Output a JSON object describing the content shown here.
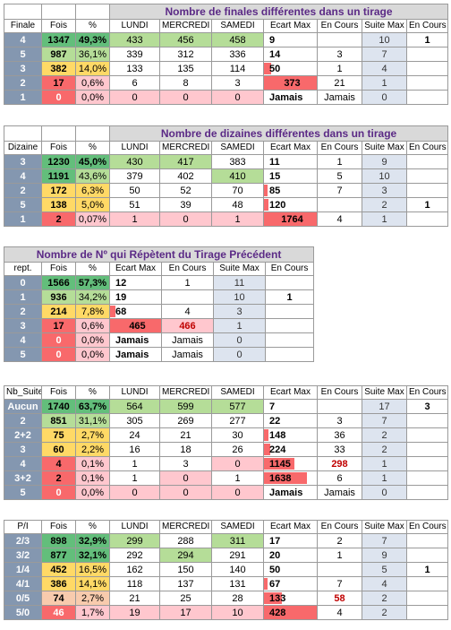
{
  "t1": {
    "title": "Nombre de finales différentes dans un tirage",
    "headers": [
      "Finale",
      "Fois",
      "%",
      "LUNDI",
      "MERCREDI",
      "SAMEDI",
      "Ecart Max",
      "En Cours",
      "Suite Max",
      "En Cours"
    ],
    "rows": [
      {
        "lbl": "4",
        "fois": "1347",
        "pct": "49,3%",
        "lun": "433",
        "mer": "456",
        "sam": "458",
        "em": "9",
        "ec": "",
        "sm": "10",
        "ec2": "1"
      },
      {
        "lbl": "5",
        "fois": "987",
        "pct": "36,1%",
        "lun": "339",
        "mer": "312",
        "sam": "336",
        "em": "14",
        "ec": "3",
        "sm": "7",
        "ec2": ""
      },
      {
        "lbl": "3",
        "fois": "382",
        "pct": "14,0%",
        "lun": "133",
        "mer": "135",
        "sam": "114",
        "em": "50",
        "ec": "1",
        "sm": "4",
        "ec2": ""
      },
      {
        "lbl": "2",
        "fois": "17",
        "pct": "0,6%",
        "lun": "6",
        "mer": "8",
        "sam": "3",
        "em": "373",
        "ec": "21",
        "sm": "1",
        "ec2": ""
      },
      {
        "lbl": "1",
        "fois": "0",
        "pct": "0,0%",
        "lun": "0",
        "mer": "0",
        "sam": "0",
        "em": "Jamais",
        "ec": "Jamais",
        "sm": "0",
        "ec2": ""
      }
    ]
  },
  "t2": {
    "title": "Nombre de dizaines différentes dans un tirage",
    "headers": [
      "Dizaine",
      "Fois",
      "%",
      "LUNDI",
      "MERCREDI",
      "SAMEDI",
      "Ecart Max",
      "En Cours",
      "Suite Max",
      "En Cours"
    ],
    "rows": [
      {
        "lbl": "3",
        "fois": "1230",
        "pct": "45,0%",
        "lun": "430",
        "mer": "417",
        "sam": "383",
        "em": "11",
        "ec": "1",
        "sm": "9",
        "ec2": ""
      },
      {
        "lbl": "4",
        "fois": "1191",
        "pct": "43,6%",
        "lun": "379",
        "mer": "402",
        "sam": "410",
        "em": "15",
        "ec": "5",
        "sm": "10",
        "ec2": ""
      },
      {
        "lbl": "2",
        "fois": "172",
        "pct": "6,3%",
        "lun": "50",
        "mer": "52",
        "sam": "70",
        "em": "85",
        "ec": "7",
        "sm": "3",
        "ec2": ""
      },
      {
        "lbl": "5",
        "fois": "138",
        "pct": "5,0%",
        "lun": "51",
        "mer": "39",
        "sam": "48",
        "em": "120",
        "ec": "",
        "sm": "2",
        "ec2": "1"
      },
      {
        "lbl": "1",
        "fois": "2",
        "pct": "0,07%",
        "lun": "1",
        "mer": "0",
        "sam": "1",
        "em": "1764",
        "ec": "4",
        "sm": "1",
        "ec2": ""
      }
    ]
  },
  "t3": {
    "title": "Nombre de Nº qui Répètent du Tirage Précédent",
    "headers": [
      "rept.",
      "Fois",
      "%",
      "Ecart Max",
      "En Cours",
      "Suite Max",
      "En Cours"
    ],
    "rows": [
      {
        "lbl": "0",
        "fois": "1566",
        "pct": "57,3%",
        "em": "12",
        "ec": "1",
        "sm": "11",
        "ec2": ""
      },
      {
        "lbl": "1",
        "fois": "936",
        "pct": "34,2%",
        "em": "19",
        "ec": "",
        "sm": "10",
        "ec2": "1"
      },
      {
        "lbl": "2",
        "fois": "214",
        "pct": "7,8%",
        "em": "68",
        "ec": "4",
        "sm": "3",
        "ec2": ""
      },
      {
        "lbl": "3",
        "fois": "17",
        "pct": "0,6%",
        "em": "465",
        "ec": "466",
        "sm": "1",
        "ec2": ""
      },
      {
        "lbl": "4",
        "fois": "0",
        "pct": "0,0%",
        "em": "Jamais",
        "ec": "Jamais",
        "sm": "0",
        "ec2": ""
      },
      {
        "lbl": "5",
        "fois": "0",
        "pct": "0,0%",
        "em": "Jamais",
        "ec": "Jamais",
        "sm": "0",
        "ec2": ""
      }
    ]
  },
  "t4": {
    "headers": [
      "Nb_Suite",
      "Fois",
      "%",
      "LUNDI",
      "MERCREDI",
      "SAMEDI",
      "Ecart Max",
      "En Cours",
      "Suite Max",
      "En Cours"
    ],
    "rows": [
      {
        "lbl": "Aucun",
        "fois": "1740",
        "pct": "63,7%",
        "lun": "564",
        "mer": "599",
        "sam": "577",
        "em": "7",
        "ec": "",
        "sm": "17",
        "ec2": "3"
      },
      {
        "lbl": "2",
        "fois": "851",
        "pct": "31,1%",
        "lun": "305",
        "mer": "269",
        "sam": "277",
        "em": "22",
        "ec": "3",
        "sm": "7",
        "ec2": ""
      },
      {
        "lbl": "2+2",
        "fois": "75",
        "pct": "2,7%",
        "lun": "24",
        "mer": "21",
        "sam": "30",
        "em": "148",
        "ec": "36",
        "sm": "2",
        "ec2": ""
      },
      {
        "lbl": "3",
        "fois": "60",
        "pct": "2,2%",
        "lun": "16",
        "mer": "18",
        "sam": "26",
        "em": "224",
        "ec": "33",
        "sm": "2",
        "ec2": ""
      },
      {
        "lbl": "4",
        "fois": "4",
        "pct": "0,1%",
        "lun": "1",
        "mer": "3",
        "sam": "0",
        "em": "1145",
        "ec": "298",
        "sm": "1",
        "ec2": ""
      },
      {
        "lbl": "3+2",
        "fois": "2",
        "pct": "0,1%",
        "lun": "1",
        "mer": "0",
        "sam": "1",
        "em": "1638",
        "ec": "6",
        "sm": "1",
        "ec2": ""
      },
      {
        "lbl": "5",
        "fois": "0",
        "pct": "0,0%",
        "lun": "0",
        "mer": "0",
        "sam": "0",
        "em": "Jamais",
        "ec": "Jamais",
        "sm": "0",
        "ec2": ""
      }
    ]
  },
  "t5": {
    "headers": [
      "P/I",
      "Fois",
      "%",
      "LUNDI",
      "MERCREDI",
      "SAMEDI",
      "Ecart Max",
      "En Cours",
      "Suite Max",
      "En Cours"
    ],
    "rows": [
      {
        "lbl": "2/3",
        "fois": "898",
        "pct": "32,9%",
        "lun": "299",
        "mer": "288",
        "sam": "311",
        "em": "17",
        "ec": "2",
        "sm": "7",
        "ec2": ""
      },
      {
        "lbl": "3/2",
        "fois": "877",
        "pct": "32,1%",
        "lun": "292",
        "mer": "294",
        "sam": "291",
        "em": "20",
        "ec": "1",
        "sm": "9",
        "ec2": ""
      },
      {
        "lbl": "1/4",
        "fois": "452",
        "pct": "16,5%",
        "lun": "162",
        "mer": "150",
        "sam": "140",
        "em": "50",
        "ec": "",
        "sm": "5",
        "ec2": "1"
      },
      {
        "lbl": "4/1",
        "fois": "386",
        "pct": "14,1%",
        "lun": "118",
        "mer": "137",
        "sam": "131",
        "em": "67",
        "ec": "7",
        "sm": "4",
        "ec2": ""
      },
      {
        "lbl": "0/5",
        "fois": "74",
        "pct": "2,7%",
        "lun": "21",
        "mer": "25",
        "sam": "28",
        "em": "133",
        "ec": "58",
        "sm": "2",
        "ec2": ""
      },
      {
        "lbl": "5/0",
        "fois": "46",
        "pct": "1,7%",
        "lun": "19",
        "mer": "17",
        "sam": "10",
        "em": "428",
        "ec": "4",
        "sm": "2",
        "ec2": ""
      }
    ]
  },
  "colors": {
    "title_text": "#5b2a86",
    "label_bg": "#8497b0",
    "green": "#63be7b",
    "red": "#f8696b",
    "yellow": "#ffd966"
  }
}
